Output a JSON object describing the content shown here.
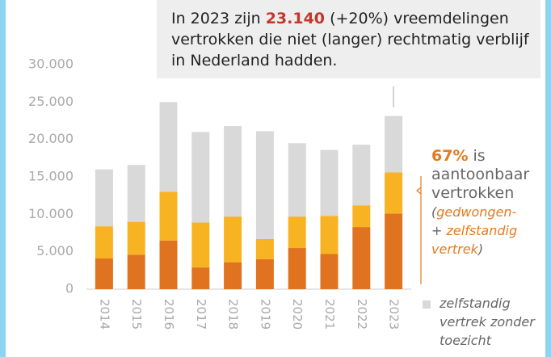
{
  "chart_data": {
    "type": "bar",
    "stacked": true,
    "categories": [
      "2014",
      "2015",
      "2016",
      "2017",
      "2018",
      "2019",
      "2020",
      "2021",
      "2022",
      "2023"
    ],
    "series": [
      {
        "color": "#e0731f",
        "values": [
          4100,
          4600,
          6500,
          2900,
          3600,
          4000,
          5500,
          4700,
          8300,
          10100
        ]
      },
      {
        "color": "#f8b323",
        "values": [
          4300,
          4400,
          6500,
          6000,
          6100,
          2700,
          4200,
          5100,
          2900,
          5500
        ]
      },
      {
        "name": "zelfstandig vertrek zonder toezicht",
        "color": "#d9d9d9",
        "values": [
          7600,
          7600,
          12000,
          12100,
          12100,
          14400,
          9800,
          8800,
          8100,
          7540
        ]
      }
    ],
    "ylim": [
      0,
      30000
    ],
    "yticks": [
      {
        "value": 0,
        "label": "0"
      },
      {
        "value": 5000,
        "label": "5.000"
      },
      {
        "value": 10000,
        "label": "10.000"
      },
      {
        "value": 15000,
        "label": "15.000"
      },
      {
        "value": 20000,
        "label": "20.000"
      },
      {
        "value": 25000,
        "label": "25.000"
      },
      {
        "value": 30000,
        "label": "30.000"
      }
    ],
    "annotation": [
      "In 2023 zijn ",
      "23.140",
      " (+20%) vreemdelingen vertrokken die niet (langer) rechtmatig verblijf in Nederland hadden."
    ],
    "side_note": [
      "67%",
      " is aantoonbaar vertrokken",
      "(",
      "gedwongen-",
      "+ ",
      "zelfstandig vertrek",
      ")"
    ]
  }
}
